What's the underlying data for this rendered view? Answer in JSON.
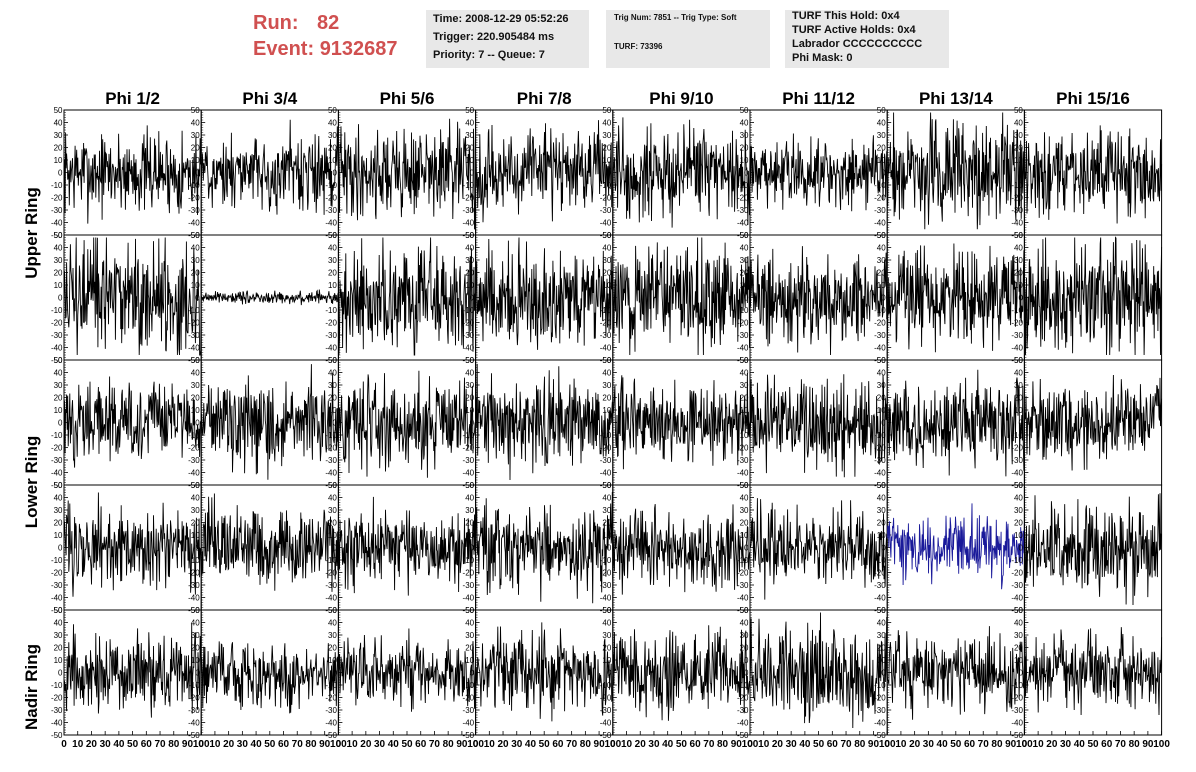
{
  "header": {
    "run_label": "Run:",
    "run_value": "82",
    "event_label": "Event:",
    "event_value": "9132687",
    "time": "Time: 2008-12-29 05:52:26",
    "trigger": "Trigger: 220.905484 ms",
    "priority": "Priority: 7 -- Queue: 7",
    "trig_num": "Trig Num: 7851 -- Trig Type: Soft",
    "turf": "TURF: 73396",
    "turf_this_hold": "TURF This Hold: 0x4",
    "turf_active_holds": "TURF Active Holds: 0x4",
    "labrador": "Labrador CCCCCCCCCC",
    "phi_mask": "Phi Mask: 0"
  },
  "chart_data": {
    "type": "line",
    "phi_titles": [
      "Phi 1/2",
      "Phi 3/4",
      "Phi 5/6",
      "Phi 7/8",
      "Phi 9/10",
      "Phi 11/12",
      "Phi 13/14",
      "Phi 15/16"
    ],
    "ring_titles": [
      "Upper Ring",
      "Lower Ring",
      "Nadir Ring"
    ],
    "xlim": [
      0,
      100
    ],
    "ylim": [
      -50,
      50
    ],
    "x_ticks": [
      0,
      10,
      20,
      30,
      40,
      50,
      60,
      70,
      80,
      90,
      100
    ],
    "y_ticks": [
      50,
      40,
      30,
      20,
      10,
      0,
      -10,
      -20,
      -30,
      -40,
      -50
    ],
    "samples_per_trace": 260,
    "trace_amplitudes": [
      [
        20,
        18,
        22,
        20,
        24,
        18,
        26,
        20
      ],
      [
        30,
        3,
        26,
        24,
        26,
        22,
        24,
        28
      ],
      [
        20,
        20,
        22,
        22,
        20,
        22,
        22,
        20
      ],
      [
        20,
        20,
        20,
        20,
        18,
        20,
        16,
        22
      ],
      [
        18,
        18,
        16,
        20,
        20,
        22,
        18,
        18
      ]
    ],
    "trace_colors": [
      [
        "#000000",
        "#000000",
        "#000000",
        "#000000",
        "#000000",
        "#000000",
        "#000000",
        "#000000"
      ],
      [
        "#000000",
        "#000000",
        "#000000",
        "#000000",
        "#000000",
        "#000000",
        "#000000",
        "#000000"
      ],
      [
        "#000000",
        "#000000",
        "#000000",
        "#000000",
        "#000000",
        "#000000",
        "#000000",
        "#000000"
      ],
      [
        "#000000",
        "#000000",
        "#000000",
        "#000000",
        "#000000",
        "#000000",
        "#1a1a9a",
        "#000000"
      ],
      [
        "#000000",
        "#000000",
        "#000000",
        "#000000",
        "#000000",
        "#000000",
        "#000000",
        "#000000"
      ]
    ]
  }
}
